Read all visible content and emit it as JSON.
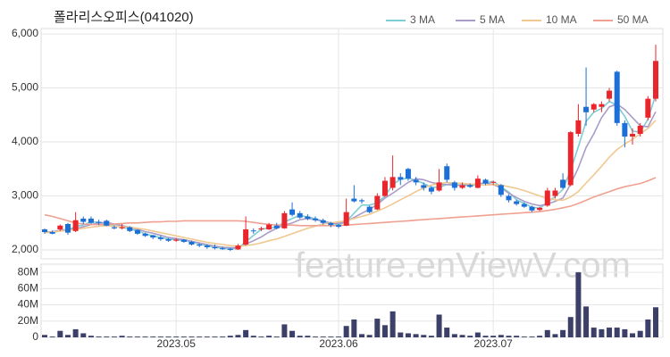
{
  "chart_data": {
    "type": "candlestick",
    "title": "폴라리스오피스(041020)",
    "watermark": "feature.enViewV.com",
    "grid": true,
    "legend": "top-right",
    "up_color": "#e8262c",
    "down_color": "#1c6fd6",
    "ylim": [
      1835,
      6100
    ],
    "yticks": [
      {
        "value": 2000,
        "label": "2,000"
      },
      {
        "value": 3000,
        "label": "3,000"
      },
      {
        "value": 4000,
        "label": "4,000"
      },
      {
        "value": 5000,
        "label": "5,000"
      },
      {
        "value": 6000,
        "label": "6,000"
      }
    ],
    "categories": [
      null,
      null,
      null,
      null,
      null,
      null,
      null,
      null,
      null,
      null,
      null,
      null,
      null,
      null,
      null,
      null,
      null,
      "2023.05",
      null,
      null,
      null,
      null,
      null,
      null,
      null,
      null,
      null,
      null,
      null,
      null,
      null,
      null,
      null,
      null,
      null,
      null,
      null,
      null,
      "2023.06",
      null,
      null,
      null,
      null,
      null,
      null,
      null,
      null,
      null,
      null,
      null,
      null,
      null,
      null,
      null,
      null,
      null,
      null,
      null,
      "2023.07",
      null,
      null,
      null,
      null,
      null,
      null,
      null,
      null,
      null,
      null,
      null,
      null,
      null,
      null,
      null,
      null,
      null,
      null,
      null,
      null,
      null
    ],
    "open": [
      2380,
      2330,
      2380,
      2480,
      2350,
      2580,
      2580,
      2520,
      2540,
      2420,
      2400,
      2420,
      2370,
      2300,
      2270,
      2230,
      2200,
      2170,
      2190,
      2150,
      2100,
      2080,
      2050,
      2030,
      2020,
      2010,
      2100,
      2360,
      2380,
      2380,
      2450,
      2400,
      2750,
      2680,
      2620,
      2580,
      2550,
      2500,
      2460,
      2450,
      2950,
      2920,
      2800,
      2750,
      3000,
      3150,
      3350,
      3500,
      3300,
      3200,
      3150,
      3100,
      3550,
      3250,
      3150,
      3200,
      3150,
      3300,
      3250,
      3200,
      3000,
      2900,
      2850,
      2800,
      2740,
      2820,
      3000,
      3300,
      3200,
      4150,
      4650,
      4600,
      4650,
      4800,
      5300,
      4350,
      4100,
      4150,
      4450,
      4800
    ],
    "high": [
      2400,
      2360,
      2470,
      2500,
      2700,
      2620,
      2620,
      2560,
      2560,
      2450,
      2480,
      2440,
      2380,
      2320,
      2280,
      2260,
      2220,
      2220,
      2200,
      2170,
      2120,
      2100,
      2100,
      2060,
      2040,
      2110,
      2620,
      2400,
      2430,
      2500,
      2500,
      2720,
      2880,
      2720,
      2660,
      2620,
      2580,
      2520,
      2480,
      2950,
      3200,
      2950,
      2820,
      3050,
      3350,
      3750,
      3420,
      3520,
      3350,
      3250,
      3180,
      3500,
      3600,
      3280,
      3250,
      3230,
      3380,
      3320,
      3280,
      3220,
      3030,
      2930,
      2880,
      2820,
      2800,
      3150,
      3150,
      3420,
      4200,
      4700,
      5380,
      4720,
      4750,
      5000,
      5320,
      4400,
      4250,
      4350,
      4850,
      5800
    ],
    "low": [
      2300,
      2290,
      2350,
      2280,
      2330,
      2480,
      2480,
      2460,
      2440,
      2380,
      2380,
      2330,
      2280,
      2240,
      2200,
      2170,
      2150,
      2150,
      2130,
      2080,
      2050,
      2020,
      2010,
      2000,
      1980,
      2000,
      2080,
      2300,
      2350,
      2370,
      2380,
      2390,
      2620,
      2580,
      2550,
      2520,
      2470,
      2420,
      2400,
      2440,
      2880,
      2860,
      2680,
      2740,
      2980,
      3100,
      3200,
      3280,
      3200,
      3100,
      3030,
      3080,
      3250,
      3100,
      3130,
      3150,
      3140,
      3200,
      3200,
      2980,
      2880,
      2820,
      2780,
      2700,
      2720,
      2800,
      2950,
      3130,
      3180,
      4100,
      4300,
      4550,
      4550,
      4750,
      4300,
      3900,
      3950,
      4100,
      4400,
      4750
    ],
    "close": [
      2330,
      2300,
      2450,
      2320,
      2550,
      2520,
      2500,
      2500,
      2450,
      2400,
      2420,
      2350,
      2300,
      2260,
      2230,
      2200,
      2170,
      2190,
      2150,
      2100,
      2080,
      2050,
      2030,
      2020,
      2000,
      2080,
      2380,
      2350,
      2400,
      2470,
      2400,
      2680,
      2650,
      2600,
      2580,
      2550,
      2500,
      2460,
      2430,
      2700,
      2900,
      2900,
      2700,
      3000,
      3280,
      3350,
      3300,
      3320,
      3250,
      3150,
      3080,
      3250,
      3300,
      3150,
      3200,
      3170,
      3320,
      3230,
      3260,
      3020,
      2920,
      2850,
      2800,
      2730,
      2780,
      3100,
      3100,
      3150,
      4180,
      4400,
      4550,
      4700,
      4700,
      4950,
      4350,
      4100,
      4150,
      4300,
      4800,
      5500
    ],
    "series": [
      {
        "name": "3 MA",
        "color": "#7fcdd4",
        "values": [
          2330,
          2320,
          2360,
          2360,
          2440,
          2460,
          2520,
          2510,
          2480,
          2450,
          2420,
          2390,
          2350,
          2300,
          2260,
          2230,
          2200,
          2190,
          2170,
          2150,
          2110,
          2080,
          2050,
          2030,
          2020,
          2030,
          2150,
          2270,
          2380,
          2410,
          2420,
          2520,
          2580,
          2640,
          2610,
          2580,
          2530,
          2500,
          2460,
          2530,
          2680,
          2830,
          2830,
          2870,
          3000,
          3210,
          3310,
          3330,
          3290,
          3230,
          3160,
          3160,
          3210,
          3230,
          3220,
          3170,
          3230,
          3240,
          3270,
          3170,
          3070,
          2930,
          2860,
          2790,
          2770,
          2880,
          2990,
          3120,
          3480,
          3910,
          4380,
          4550,
          4620,
          4750,
          4680,
          4470,
          4200,
          4180,
          4420,
          4870
        ]
      },
      {
        "name": "5 MA",
        "color": "#a89cc8",
        "values": [
          2330,
          2340,
          2360,
          2380,
          2390,
          2430,
          2470,
          2500,
          2510,
          2480,
          2450,
          2420,
          2380,
          2340,
          2310,
          2270,
          2230,
          2210,
          2190,
          2160,
          2130,
          2100,
          2070,
          2050,
          2040,
          2040,
          2110,
          2170,
          2240,
          2330,
          2400,
          2460,
          2500,
          2560,
          2580,
          2560,
          2530,
          2500,
          2490,
          2530,
          2600,
          2680,
          2750,
          2840,
          2960,
          3050,
          3150,
          3250,
          3320,
          3300,
          3250,
          3220,
          3210,
          3200,
          3190,
          3210,
          3220,
          3240,
          3210,
          3150,
          3050,
          2970,
          2900,
          2850,
          2820,
          2850,
          2900,
          2960,
          3220,
          3520,
          3900,
          4150,
          4450,
          4650,
          4700,
          4600,
          4450,
          4300,
          4280,
          4560
        ]
      },
      {
        "name": "10 MA",
        "color": "#f0c890",
        "values": [
          2320,
          2330,
          2350,
          2360,
          2380,
          2400,
          2420,
          2440,
          2450,
          2440,
          2430,
          2420,
          2400,
          2380,
          2350,
          2320,
          2290,
          2260,
          2230,
          2200,
          2170,
          2140,
          2120,
          2100,
          2080,
          2070,
          2080,
          2100,
          2130,
          2170,
          2200,
          2250,
          2300,
          2350,
          2400,
          2440,
          2480,
          2500,
          2520,
          2540,
          2580,
          2620,
          2660,
          2720,
          2780,
          2850,
          2930,
          3000,
          3080,
          3150,
          3200,
          3230,
          3250,
          3240,
          3230,
          3220,
          3210,
          3200,
          3210,
          3200,
          3170,
          3140,
          3100,
          3050,
          3000,
          2950,
          2930,
          2920,
          2980,
          3080,
          3240,
          3390,
          3550,
          3720,
          3860,
          3960,
          4050,
          4150,
          4250,
          4400
        ]
      },
      {
        "name": "50 MA",
        "color": "#f0a090",
        "values": [
          2650,
          2620,
          2580,
          2540,
          2500,
          2480,
          2470,
          2470,
          2470,
          2480,
          2490,
          2500,
          2500,
          2510,
          2520,
          2520,
          2530,
          2530,
          2540,
          2540,
          2540,
          2540,
          2540,
          2540,
          2540,
          2540,
          2530,
          2510,
          2490,
          2470,
          2460,
          2460,
          2460,
          2450,
          2450,
          2450,
          2450,
          2450,
          2450,
          2460,
          2470,
          2480,
          2490,
          2500,
          2510,
          2520,
          2530,
          2540,
          2550,
          2560,
          2570,
          2580,
          2590,
          2600,
          2610,
          2620,
          2630,
          2640,
          2650,
          2660,
          2670,
          2680,
          2690,
          2700,
          2710,
          2730,
          2750,
          2780,
          2810,
          2860,
          2920,
          2980,
          3030,
          3080,
          3130,
          3170,
          3200,
          3230,
          3280,
          3340
        ]
      }
    ],
    "volume": {
      "color": "#3c4068",
      "ylim": [
        0,
        90
      ],
      "yticks": [
        0,
        {
          "value": 20,
          "label": "20M"
        },
        {
          "value": 40,
          "label": "40M"
        },
        {
          "value": 60,
          "label": "60M"
        },
        {
          "value": 80,
          "label": "80M"
        }
      ],
      "values": [
        3,
        1,
        8,
        3,
        10,
        5,
        2,
        1,
        1,
        1,
        2,
        1,
        1,
        1,
        1,
        1,
        1,
        1,
        1,
        1,
        1,
        1,
        1,
        1,
        2,
        3,
        9,
        2,
        1,
        2,
        1,
        16,
        8,
        2,
        2,
        1,
        1,
        1,
        1,
        14,
        22,
        4,
        3,
        23,
        15,
        32,
        6,
        5,
        4,
        3,
        2,
        28,
        12,
        4,
        3,
        2,
        6,
        2,
        2,
        3,
        2,
        2,
        1,
        1,
        2,
        9,
        4,
        9,
        25,
        80,
        38,
        12,
        10,
        12,
        12,
        10,
        5,
        8,
        22,
        37
      ]
    }
  }
}
